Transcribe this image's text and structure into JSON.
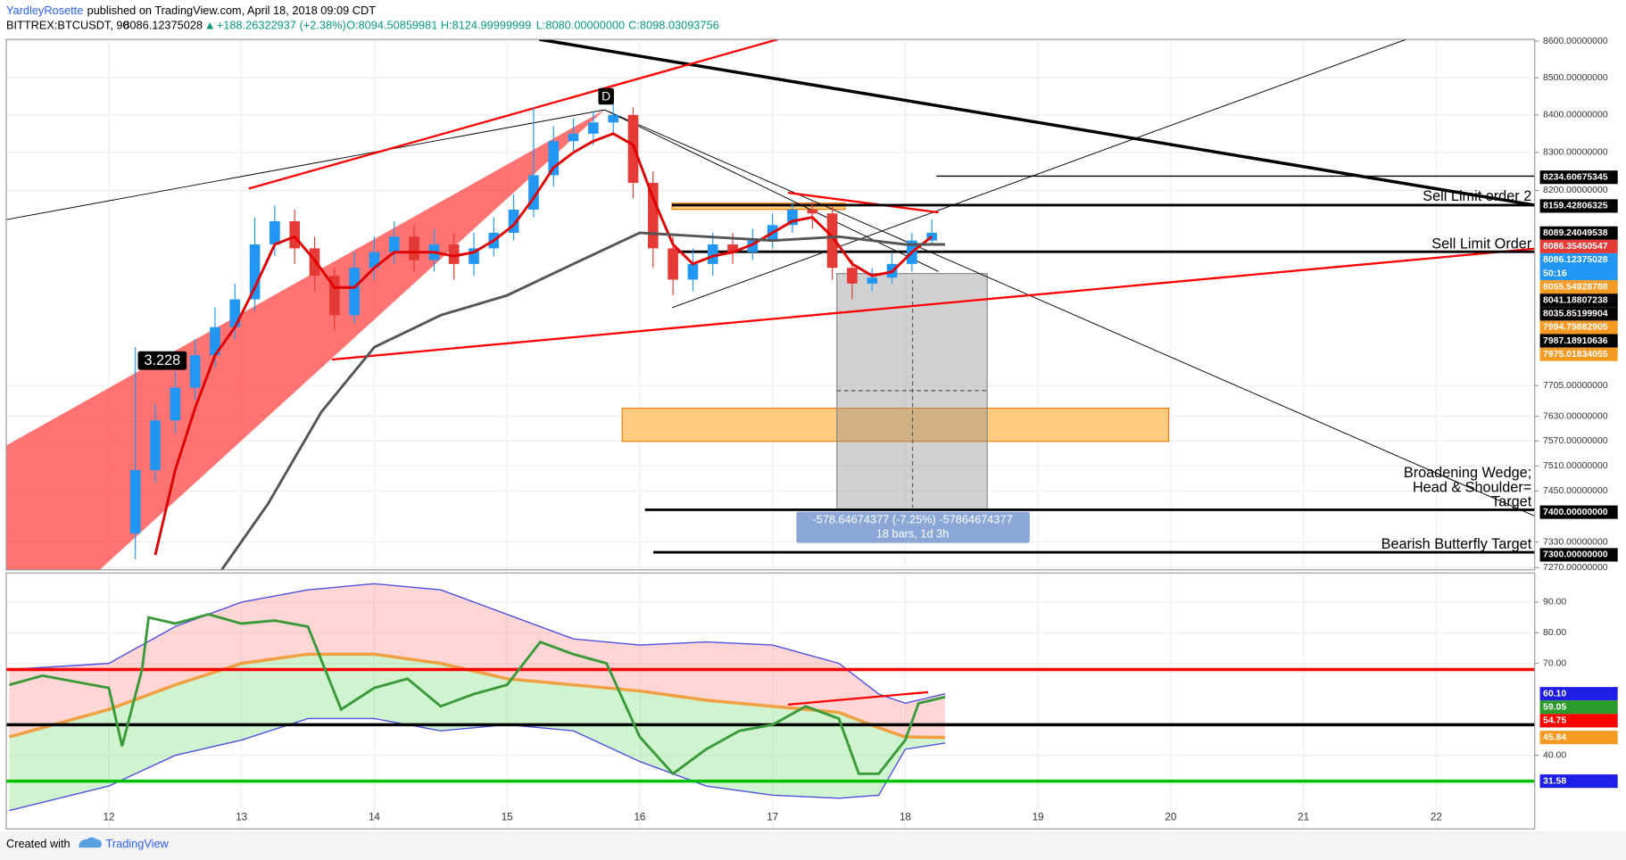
{
  "header": {
    "author": "YardleyRosette",
    "published": "published on TradingView.com, April 18, 2018 09:09 CDT",
    "symbol": "BITTREX:BTCUSDT, 90",
    "price": "8086.12375028",
    "arrow": "▲",
    "change": "+188.26322937 (+2.38%)",
    "open": "O:8094.50859981",
    "high": "H:8124.99999999",
    "low": "L:8080.00000000",
    "close": "C:8098.03093756"
  },
  "chart_data": {
    "type": "candlestick",
    "log_scale": true,
    "grid": true,
    "xlim": [
      11.227,
      22.742
    ],
    "xticks": [
      12,
      13,
      14,
      15,
      16,
      17,
      18,
      19,
      20,
      21,
      22
    ],
    "ylim": [
      7265,
      8605
    ],
    "yticks": [
      {
        "value": 8600,
        "label": "8600.00000000"
      },
      {
        "value": 8500,
        "label": "8500.00000000"
      },
      {
        "value": 8400,
        "label": "8400.00000000"
      },
      {
        "value": 8300,
        "label": "8300.00000000"
      },
      {
        "value": 8200,
        "label": "8200.00000000"
      },
      {
        "value": 7705,
        "label": "7705.00000000"
      },
      {
        "value": 7630,
        "label": "7630.00000000"
      },
      {
        "value": 7570,
        "label": "7570.00000000"
      },
      {
        "value": 7510,
        "label": "7510.00000000"
      },
      {
        "value": 7450,
        "label": "7450.00000000"
      },
      {
        "value": 7330,
        "label": "7330.00000000"
      },
      {
        "value": 7270,
        "label": "7270.00000000"
      }
    ],
    "candles": {
      "up_color": "#2196f3",
      "down_color": "#e53935",
      "x": [
        12.2,
        12.35,
        12.5,
        12.65,
        12.8,
        12.95,
        13.1,
        13.25,
        13.4,
        13.55,
        13.7,
        13.85,
        14.0,
        14.15,
        14.3,
        14.45,
        14.6,
        14.75,
        14.9,
        15.05,
        15.2,
        15.35,
        15.5,
        15.65,
        15.8,
        15.95,
        16.1,
        16.25,
        16.4,
        16.55,
        16.7,
        16.85,
        17.0,
        17.15,
        17.3,
        17.45,
        17.6,
        17.75,
        17.9,
        18.05,
        18.2
      ],
      "open": [
        7350,
        7500,
        7620,
        7700,
        7780,
        7850,
        7920,
        8060,
        8120,
        8050,
        7980,
        7880,
        8000,
        8040,
        8080,
        8020,
        8060,
        8010,
        8050,
        8090,
        8150,
        8240,
        8330,
        8350,
        8380,
        8400,
        8220,
        8050,
        7970,
        8010,
        8060,
        8040,
        8070,
        8110,
        8150,
        8140,
        8000,
        7960,
        7975,
        8010,
        8070
      ],
      "high": [
        7800,
        7660,
        7740,
        7820,
        7900,
        7960,
        8130,
        8160,
        8150,
        8080,
        8000,
        8040,
        8080,
        8120,
        8110,
        8100,
        8090,
        8090,
        8130,
        8190,
        8420,
        8370,
        8390,
        8410,
        8430,
        8420,
        8250,
        8080,
        8050,
        8090,
        8090,
        8100,
        8140,
        8170,
        8170,
        8160,
        8020,
        8000,
        8040,
        8090,
        8125
      ],
      "low": [
        7290,
        7470,
        7590,
        7670,
        7750,
        7820,
        7890,
        8030,
        8010,
        7940,
        7840,
        7860,
        7970,
        8010,
        7990,
        7990,
        7970,
        7980,
        8030,
        8070,
        8130,
        8210,
        8300,
        8320,
        8350,
        8180,
        8000,
        7930,
        7940,
        7980,
        8010,
        8020,
        8050,
        8090,
        8100,
        7970,
        7920,
        7940,
        7960,
        7990,
        8060
      ],
      "close": [
        7500,
        7620,
        7700,
        7780,
        7850,
        7920,
        8060,
        8120,
        8050,
        7980,
        7880,
        8000,
        8040,
        8080,
        8020,
        8060,
        8010,
        8050,
        8090,
        8150,
        8240,
        8330,
        8350,
        8380,
        8400,
        8220,
        8050,
        7970,
        8010,
        8060,
        8040,
        8070,
        8110,
        8150,
        8140,
        8000,
        7960,
        7975,
        8010,
        8070,
        8090
      ]
    },
    "overlays": [
      {
        "color": "#e00000",
        "x": [
          12.2,
          12.35,
          12.5,
          12.65,
          12.8,
          12.95,
          13.1,
          13.25,
          13.4,
          13.55,
          13.7,
          13.85,
          14.0,
          14.15,
          14.3,
          14.45,
          14.6,
          14.75,
          14.9,
          15.05,
          15.2,
          15.35,
          15.5,
          15.65,
          15.8,
          15.95,
          16.1,
          16.25,
          16.4,
          16.55,
          16.7,
          16.85,
          17.0,
          17.15,
          17.3,
          17.45,
          17.6,
          17.75,
          17.9,
          18.05,
          18.2
        ],
        "values": [
          null,
          7300,
          7500,
          7650,
          7780,
          7850,
          7950,
          8060,
          8080,
          8020,
          7950,
          7950,
          8000,
          8040,
          8040,
          8040,
          8030,
          8040,
          8070,
          8110,
          8180,
          8260,
          8300,
          8330,
          8350,
          8320,
          8180,
          8060,
          8010,
          8030,
          8040,
          8060,
          8090,
          8120,
          8130,
          8080,
          8010,
          7980,
          7990,
          8040,
          8080
        ]
      },
      {
        "color": "#555555",
        "x": [
          12.85,
          13.2,
          13.6,
          14.0,
          14.5,
          15.0,
          15.5,
          16.0,
          16.5,
          17.0,
          17.5,
          18.0,
          18.3
        ],
        "values": [
          7265,
          7420,
          7640,
          7800,
          7880,
          7930,
          8010,
          8090,
          8080,
          8070,
          8080,
          8060,
          8060
        ]
      }
    ],
    "price_labels": [
      {
        "value": 8234.60675345,
        "label": "8234.60675345",
        "color": "#000000"
      },
      {
        "value": 8159.42806325,
        "label": "8159.42806325",
        "color": "#000000"
      },
      {
        "value": 8089.24049538,
        "label": "8089.24049538",
        "color": "#000000"
      },
      {
        "value": 8086.35450547,
        "label": "8086.35450547",
        "color": "#e53935"
      },
      {
        "value": 8086.12375028,
        "label": "8086.12375028",
        "color": "#2196f3"
      },
      {
        "label": "50:16",
        "color": "#2196f3"
      },
      {
        "value": 8055.54928788,
        "label": "8055.54928788",
        "color": "#f59a23"
      },
      {
        "value": 8041.18807238,
        "label": "8041.18807238",
        "color": "#000000"
      },
      {
        "value": 8035.85199904,
        "label": "8035.85199904",
        "color": "#000000"
      },
      {
        "value": 7994.79882905,
        "label": "7994.79882905",
        "color": "#f59a23"
      },
      {
        "value": 7987.18910636,
        "label": "7987.18910636",
        "color": "#000000"
      },
      {
        "value": 7975.01834055,
        "label": "7975.01834055",
        "color": "#f59a23"
      },
      {
        "value": 7400,
        "label": "7400.00000000",
        "color": "#000000"
      },
      {
        "value": 7300,
        "label": "7300.00000000",
        "color": "#000000"
      }
    ],
    "annotations": {
      "point_d": "D",
      "ratio": "3.228",
      "sell2": "Sell Limit order 2",
      "sell1": "Sell Limit Order",
      "wedge1": "Broadening Wedge;",
      "wedge2": "Head & Shoulder=",
      "wedge3": "Target",
      "butterfly": "Bearish Butterfly Target",
      "measure1": "-578.64674377 (-7.25%) -57864674377",
      "measure2": "18 bars, 1d 3h"
    },
    "indicator": {
      "ylim": [
        16,
        99.5
      ],
      "yticks": [
        {
          "value": 90,
          "label": "90.00"
        },
        {
          "value": 80,
          "label": "80.00"
        },
        {
          "value": 70,
          "label": "70.00"
        },
        {
          "value": 40,
          "label": "40.00"
        }
      ],
      "rsi": {
        "color": "#3a9a3a",
        "x": [
          11.25,
          11.5,
          11.75,
          12.0,
          12.1,
          12.25,
          12.3,
          12.5,
          12.75,
          13.0,
          13.25,
          13.5,
          13.75,
          14.0,
          14.25,
          14.5,
          14.75,
          15.0,
          15.25,
          15.5,
          15.75,
          16.0,
          16.25,
          16.5,
          16.75,
          17.0,
          17.25,
          17.5,
          17.65,
          17.8,
          18.0,
          18.1,
          18.3
        ],
        "values": [
          63,
          66,
          64,
          62,
          43,
          68,
          85,
          83,
          86,
          83,
          84,
          82,
          55,
          62,
          65,
          56,
          60,
          63,
          77,
          73,
          70,
          46,
          34,
          42,
          48,
          50,
          56,
          52,
          34,
          34,
          45,
          57,
          59.05
        ]
      },
      "bands": {
        "x": [
          11.25,
          12,
          12.5,
          13,
          13.5,
          14,
          14.5,
          15,
          15.5,
          16,
          16.5,
          17,
          17.5,
          17.8,
          18,
          18.3
        ],
        "upper": [
          68,
          70,
          82,
          90,
          94,
          96,
          94,
          86,
          78,
          76,
          77,
          76,
          70,
          60,
          57,
          60.1
        ],
        "mid": [
          46,
          55,
          63,
          70,
          73,
          73,
          70,
          65,
          63,
          61,
          58,
          56,
          54,
          49,
          46,
          45.84
        ],
        "lower": [
          22,
          30,
          40,
          45,
          52,
          52,
          48,
          50,
          48,
          38,
          30,
          27,
          26,
          27,
          42,
          44
        ],
        "upper_color": "#5050e0",
        "mid_color": "#f0a040",
        "lower_color": "#5050e0"
      },
      "levels": [
        {
          "value": 68,
          "color": "#ff0000"
        },
        {
          "value": 50,
          "color": "#000000"
        },
        {
          "value": 31.58,
          "color": "#00c000"
        }
      ],
      "value_labels": [
        {
          "value": 60.1,
          "label": "60.10",
          "color": "#1e1ee6"
        },
        {
          "value": 59.05,
          "label": "59.05",
          "color": "#2a9a2a"
        },
        {
          "value": 54.75,
          "label": "54.75",
          "color": "#ff0000"
        },
        {
          "value": 45.84,
          "label": "45.84",
          "color": "#f59a23"
        },
        {
          "value": 31.58,
          "label": "31.58",
          "color": "#1e1ee6"
        }
      ]
    }
  },
  "footer": {
    "created": "Created with",
    "brand": "TradingView"
  }
}
